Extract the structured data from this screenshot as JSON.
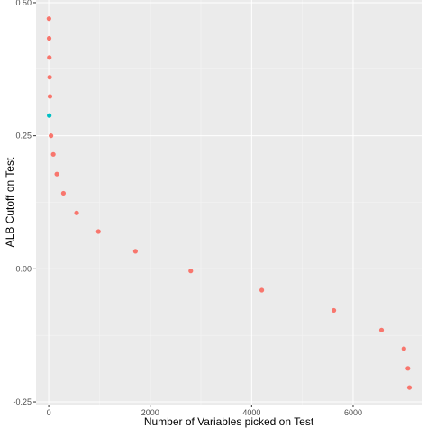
{
  "chart_data": {
    "type": "scatter",
    "title": "",
    "xlabel": "Number of Variables picked on Test",
    "ylabel": "ALB Cutoff on Test",
    "xlim": [
      -250,
      7350
    ],
    "ylim": [
      -0.255,
      0.505
    ],
    "x_ticks": [
      0,
      2000,
      4000,
      6000
    ],
    "x_tick_labels": [
      "0",
      "2000",
      "4000",
      "6000"
    ],
    "y_ticks": [
      -0.25,
      0,
      0.25,
      0.5
    ],
    "y_tick_labels": [
      "-0.25",
      "0.00",
      "0.25",
      "0.50"
    ],
    "grid": true,
    "legend": "none",
    "colors": {
      "panel_background": "#ebebeb",
      "grid_major": "#ffffff",
      "grid_minor": "#f5f5f5",
      "points": "#f8766d",
      "highlight": "#00bfc4"
    },
    "series": [
      {
        "color": "#f8766d",
        "x": [
          5,
          8,
          12,
          18,
          25,
          45,
          90,
          160,
          290,
          550,
          980,
          1710,
          2800,
          4200,
          5620,
          6560,
          7000,
          7080,
          7110
        ],
        "y": [
          0.47,
          0.433,
          0.397,
          0.36,
          0.324,
          0.25,
          0.215,
          0.178,
          0.142,
          0.105,
          0.07,
          0.033,
          -0.004,
          -0.04,
          -0.078,
          -0.115,
          -0.15,
          -0.187,
          -0.223
        ]
      },
      {
        "color": "#00bfc4",
        "x": [
          10
        ],
        "y": [
          0.288
        ]
      }
    ]
  }
}
